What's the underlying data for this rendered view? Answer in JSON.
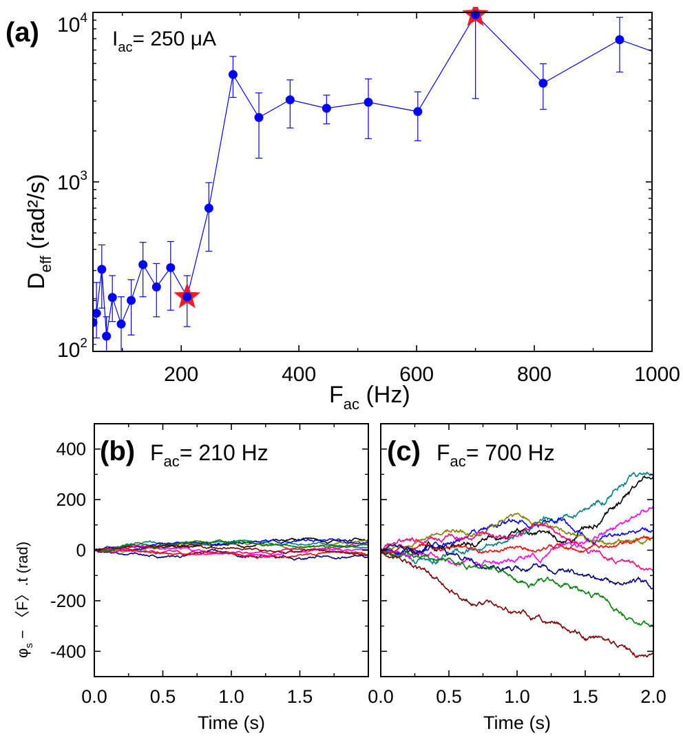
{
  "chart_data": [
    {
      "type": "scatter",
      "panel_label": "(a)",
      "annotation": {
        "main": "I",
        "sub": "ac",
        "rest": "= 250 μA"
      },
      "ylabel": {
        "main": "D",
        "sub": "eff",
        "rest": " (rad²/s)"
      },
      "xlabel": {
        "main": "F",
        "sub": "ac",
        "rest": " (Hz)"
      },
      "xlim": [
        50,
        1000
      ],
      "ylim": [
        100,
        10000
      ],
      "yscale": "log",
      "xticks": [
        200,
        400,
        600,
        800,
        1000
      ],
      "xtick_labels": [
        "200",
        "400",
        "600",
        "800",
        "1000"
      ],
      "ytick_labels": [
        {
          "value": 100,
          "base": "10",
          "exp": "2"
        },
        {
          "value": 1000,
          "base": "10",
          "exp": "3"
        },
        {
          "value": 10000,
          "base": "10",
          "exp": "4"
        }
      ],
      "series": [
        {
          "name": "D_eff",
          "color": "#0000ff",
          "points": [
            {
              "x": 50,
              "y": 148,
              "lo": 110,
              "hi": 205
            },
            {
              "x": 56,
              "y": 168,
              "lo": 120,
              "hi": 255
            },
            {
              "x": 65,
              "y": 305,
              "lo": 180,
              "hi": 425
            },
            {
              "x": 73,
              "y": 123,
              "lo": 100,
              "hi": 160
            },
            {
              "x": 83,
              "y": 208,
              "lo": 150,
              "hi": 280
            },
            {
              "x": 98,
              "y": 145,
              "lo": 100,
              "hi": 210
            },
            {
              "x": 115,
              "y": 200,
              "lo": 125,
              "hi": 265
            },
            {
              "x": 135,
              "y": 325,
              "lo": 210,
              "hi": 440
            },
            {
              "x": 158,
              "y": 240,
              "lo": 160,
              "hi": 330
            },
            {
              "x": 182,
              "y": 312,
              "lo": 175,
              "hi": 445
            },
            {
              "x": 210,
              "y": 210,
              "lo": 140,
              "hi": 280
            },
            {
              "x": 247,
              "y": 700,
              "lo": 390,
              "hi": 990
            },
            {
              "x": 288,
              "y": 4300,
              "lo": 3150,
              "hi": 5500
            },
            {
              "x": 332,
              "y": 2400,
              "lo": 1380,
              "hi": 3350
            },
            {
              "x": 385,
              "y": 3050,
              "lo": 2080,
              "hi": 4000
            },
            {
              "x": 447,
              "y": 2720,
              "lo": 2200,
              "hi": 3250
            },
            {
              "x": 518,
              "y": 2950,
              "lo": 1800,
              "hi": 4050
            },
            {
              "x": 602,
              "y": 2600,
              "lo": 1750,
              "hi": 3400
            },
            {
              "x": 700,
              "y": 9700,
              "lo": 3100,
              "hi": 12000
            },
            {
              "x": 815,
              "y": 3820,
              "lo": 2680,
              "hi": 4980
            },
            {
              "x": 945,
              "y": 6900,
              "lo": 4450,
              "hi": 9350
            },
            {
              "x": 1000,
              "y": 5900
            }
          ]
        }
      ],
      "highlighted_points": [
        {
          "x": 210,
          "y": 210,
          "marker": "star",
          "color": "#ee1c25"
        },
        {
          "x": 700,
          "y": 9700,
          "marker": "star",
          "color": "#ee1c25"
        }
      ]
    },
    {
      "type": "line",
      "panel_label": "(b)",
      "annotation": {
        "main": "F",
        "sub": "ac",
        "rest": "= 210 Hz"
      },
      "ylabel": {
        "pre": "φ",
        "pre_sub": "s",
        "rest": " − 〈F〉.t (rad)"
      },
      "xlabel": "Time (s)",
      "xlim": [
        0,
        2
      ],
      "ylim": [
        -500,
        500
      ],
      "xticks": [
        0,
        0.5,
        1.0,
        1.5
      ],
      "xtick_labels": [
        "0.0",
        "0.5",
        "1.0",
        "1.5"
      ],
      "yticks": [
        -400,
        -200,
        0,
        200,
        400
      ],
      "ytick_labels": [
        "-400",
        "-200",
        "0",
        "200",
        "400"
      ],
      "series": [
        {
          "name": "trace-black",
          "color": "#000000",
          "seed": 11,
          "end": 40,
          "noise": 6
        },
        {
          "name": "trace-navy",
          "color": "#00007f",
          "seed": 12,
          "end": -30,
          "noise": 6
        },
        {
          "name": "trace-olive",
          "color": "#808000",
          "seed": 13,
          "end": 35,
          "noise": 5
        },
        {
          "name": "trace-teal",
          "color": "#008080",
          "seed": 14,
          "end": 10,
          "noise": 5
        },
        {
          "name": "trace-blue",
          "color": "#0000ff",
          "seed": 15,
          "end": 30,
          "noise": 5
        },
        {
          "name": "trace-magenta",
          "color": "#ff00ff",
          "seed": 16,
          "end": 5,
          "noise": 5
        },
        {
          "name": "trace-pink",
          "color": "#ff0080",
          "seed": 17,
          "end": 20,
          "noise": 5
        },
        {
          "name": "trace-red",
          "color": "#ff0000",
          "seed": 18,
          "end": -15,
          "noise": 5
        },
        {
          "name": "trace-green",
          "color": "#008000",
          "seed": 19,
          "end": 25,
          "noise": 5
        },
        {
          "name": "trace-maroon",
          "color": "#800000",
          "seed": 20,
          "end": -20,
          "noise": 5
        }
      ]
    },
    {
      "type": "line",
      "panel_label": "(c)",
      "annotation": {
        "main": "F",
        "sub": "ac",
        "rest": "= 700 Hz"
      },
      "xlabel": "Time (s)",
      "xlim": [
        0,
        2
      ],
      "ylim": [
        -500,
        500
      ],
      "xticks": [
        0,
        0.5,
        1.0,
        1.5,
        2.0
      ],
      "xtick_labels": [
        "0.0",
        "0.5",
        "1.0",
        "1.5",
        "2.0"
      ],
      "series": [
        {
          "name": "trace-black",
          "color": "#000000",
          "seed": 21,
          "end": 285,
          "noise": 14,
          "anchors": [
            [
              0,
              0
            ],
            [
              0.25,
              20
            ],
            [
              0.6,
              80
            ],
            [
              1.0,
              140
            ],
            [
              1.4,
              110
            ],
            [
              1.7,
              240
            ],
            [
              2.0,
              285
            ]
          ]
        },
        {
          "name": "trace-teal",
          "color": "#008080",
          "seed": 22,
          "end": 300,
          "noise": 14,
          "anchors": [
            [
              0,
              0
            ],
            [
              0.4,
              -20
            ],
            [
              0.8,
              40
            ],
            [
              1.0,
              110
            ],
            [
              1.3,
              140
            ],
            [
              1.6,
              230
            ],
            [
              1.85,
              310
            ],
            [
              2.0,
              300
            ]
          ]
        },
        {
          "name": "trace-magenta",
          "color": "#ff00ff",
          "seed": 23,
          "end": 170,
          "noise": 12,
          "anchors": [
            [
              0,
              0
            ],
            [
              0.5,
              10
            ],
            [
              1.0,
              60
            ],
            [
              1.4,
              90
            ],
            [
              1.7,
              110
            ],
            [
              2.0,
              170
            ]
          ]
        },
        {
          "name": "trace-blue",
          "color": "#0000ff",
          "seed": 24,
          "end": 80,
          "noise": 12,
          "anchors": [
            [
              0,
              0
            ],
            [
              0.3,
              -30
            ],
            [
              0.6,
              40
            ],
            [
              0.9,
              60
            ],
            [
              1.3,
              120
            ],
            [
              1.6,
              40
            ],
            [
              2.0,
              80
            ]
          ]
        },
        {
          "name": "trace-olive",
          "color": "#808000",
          "seed": 25,
          "end": 50,
          "noise": 12,
          "anchors": [
            [
              0,
              0
            ],
            [
              0.4,
              60
            ],
            [
              0.7,
              90
            ],
            [
              0.95,
              140
            ],
            [
              1.3,
              100
            ],
            [
              1.6,
              40
            ],
            [
              2.0,
              50
            ]
          ]
        },
        {
          "name": "trace-red",
          "color": "#ff0000",
          "seed": 26,
          "end": 50,
          "noise": 10,
          "anchors": [
            [
              0,
              0
            ],
            [
              0.5,
              -10
            ],
            [
              1.0,
              0
            ],
            [
              1.5,
              20
            ],
            [
              2.0,
              50
            ]
          ]
        },
        {
          "name": "trace-pink",
          "color": "#ff0080",
          "seed": 27,
          "end": -85,
          "noise": 12,
          "anchors": [
            [
              0,
              0
            ],
            [
              0.5,
              20
            ],
            [
              0.9,
              10
            ],
            [
              1.2,
              60
            ],
            [
              1.5,
              -10
            ],
            [
              1.8,
              -60
            ],
            [
              2.0,
              -85
            ]
          ]
        },
        {
          "name": "trace-navy",
          "color": "#00007f",
          "seed": 28,
          "end": -150,
          "noise": 12,
          "anchors": [
            [
              0,
              0
            ],
            [
              0.4,
              -10
            ],
            [
              0.8,
              -60
            ],
            [
              1.2,
              -40
            ],
            [
              1.6,
              -100
            ],
            [
              2.0,
              -150
            ]
          ]
        },
        {
          "name": "trace-green",
          "color": "#008000",
          "seed": 29,
          "end": -305,
          "noise": 12,
          "anchors": [
            [
              0,
              0
            ],
            [
              0.3,
              -60
            ],
            [
              0.7,
              -80
            ],
            [
              1.0,
              -150
            ],
            [
              1.4,
              -180
            ],
            [
              1.7,
              -230
            ],
            [
              2.0,
              -305
            ]
          ]
        },
        {
          "name": "trace-maroon",
          "color": "#800000",
          "seed": 30,
          "end": -405,
          "noise": 12,
          "anchors": [
            [
              0,
              0
            ],
            [
              0.3,
              -60
            ],
            [
              0.6,
              -160
            ],
            [
              0.9,
              -210
            ],
            [
              1.2,
              -260
            ],
            [
              1.5,
              -300
            ],
            [
              1.8,
              -380
            ],
            [
              2.0,
              -405
            ]
          ]
        }
      ]
    }
  ]
}
